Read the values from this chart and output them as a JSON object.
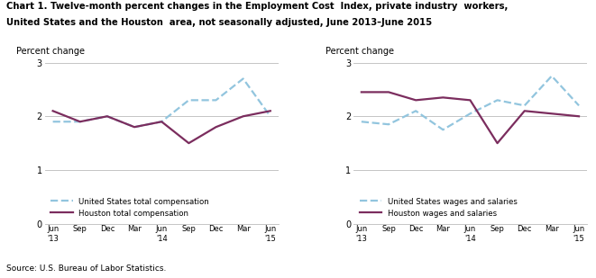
{
  "title_line1": "Chart 1. Twelve-month percent changes in the Employment Cost  Index, private industry  workers,",
  "title_line2": "United States and the Houston  area, not seasonally adjusted, June 2013–June 2015",
  "source": "Source: U.S. Bureau of Labor Statistics.",
  "x_labels": [
    "Jun\n'13",
    "Sep",
    "Dec",
    "Mar",
    "Jun\n'14",
    "Sep",
    "Dec",
    "Mar",
    "Jun\n'15"
  ],
  "ylim": [
    0.0,
    3.0
  ],
  "yticks": [
    0.0,
    1.0,
    2.0,
    3.0
  ],
  "ylabel": "Percent change",
  "left_us_total": [
    1.9,
    1.9,
    2.0,
    1.8,
    1.9,
    2.3,
    2.3,
    2.7,
    2.0
  ],
  "left_houston_total": [
    2.1,
    1.9,
    2.0,
    1.8,
    1.9,
    1.5,
    1.8,
    2.0,
    2.1
  ],
  "right_us_wages": [
    1.9,
    1.85,
    2.1,
    1.75,
    2.05,
    2.3,
    2.2,
    2.75,
    2.2
  ],
  "right_houston_wages": [
    2.45,
    2.45,
    2.3,
    2.35,
    2.3,
    1.5,
    2.1,
    2.05,
    2.0
  ],
  "us_color": "#92C5DE",
  "houston_color": "#7B2D5E",
  "us_linestyle": "--",
  "houston_linestyle": "-",
  "linewidth": 1.5,
  "left_legend_us": "United States total compensation",
  "left_legend_houston": "Houston total compensation",
  "right_legend_us": "United States wages and salaries",
  "right_legend_houston": "Houston wages and salaries",
  "background_color": "#FFFFFF",
  "plot_bg_color": "#FFFFFF",
  "grid_color": "#BBBBBB",
  "title_color": "#000000",
  "label_color": "#000000",
  "text_color": "#000000"
}
